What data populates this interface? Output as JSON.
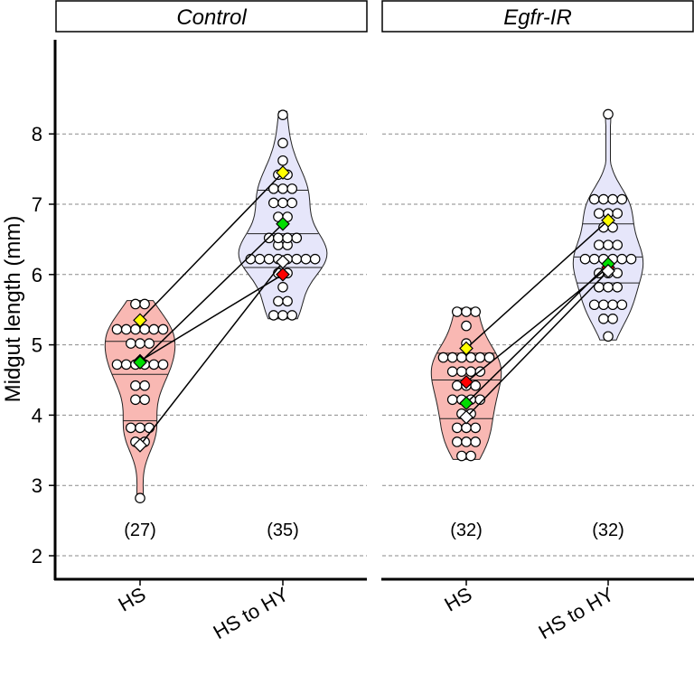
{
  "chart_data": {
    "type": "violin",
    "ylabel": "Midgut length (mm)",
    "ylim": [
      1.7,
      9.3
    ],
    "yticks": [
      2,
      3,
      4,
      5,
      6,
      7,
      8
    ],
    "grid": "horizontal dashed",
    "group_colors": {
      "HS": "#f9b8b3",
      "HS to HY": "#e6e6fa"
    },
    "marker_colors": [
      "#ffff00",
      "#ff0000",
      "#00dd00",
      "#ffffff"
    ],
    "panels": [
      {
        "name": "Control",
        "groups": [
          {
            "label": "HS",
            "count_label": "(27)",
            "quartiles": [
              3.92,
              4.58,
              5.05
            ],
            "points": [
              2.82,
              3.62,
              3.62,
              3.82,
              3.82,
              3.82,
              4.22,
              4.22,
              4.42,
              4.42,
              4.72,
              4.72,
              4.72,
              4.72,
              4.72,
              4.72,
              5.02,
              5.02,
              5.02,
              5.22,
              5.22,
              5.22,
              5.22,
              5.22,
              5.22,
              5.58,
              5.58
            ]
          },
          {
            "label": "HS to HY",
            "count_label": "(35)",
            "quartiles": [
              6.1,
              6.58,
              7.2
            ],
            "points": [
              5.42,
              5.42,
              5.42,
              5.62,
              5.62,
              5.82,
              6.02,
              6.02,
              6.22,
              6.22,
              6.22,
              6.22,
              6.22,
              6.22,
              6.22,
              6.22,
              6.42,
              6.42,
              6.52,
              6.52,
              6.52,
              6.52,
              6.82,
              6.82,
              7.02,
              7.02,
              7.02,
              7.22,
              7.22,
              7.22,
              7.42,
              7.42,
              7.62,
              7.87,
              8.27
            ]
          }
        ],
        "replicate_means": [
          {
            "color": "#ffff00",
            "HS": 5.35,
            "HS to HY": 7.45
          },
          {
            "color": "#ff0000",
            "HS": 4.77,
            "HS to HY": 6.0
          },
          {
            "color": "#00dd00",
            "HS": 4.75,
            "HS to HY": 6.72
          },
          {
            "color": "#ffffff",
            "HS": 3.57,
            "HS to HY": 6.18
          }
        ]
      },
      {
        "name": "Egfr-IR",
        "groups": [
          {
            "label": "HS",
            "count_label": "(32)",
            "quartiles": [
              3.95,
              4.5,
              4.88
            ],
            "points": [
              3.42,
              3.42,
              3.62,
              3.62,
              3.62,
              3.82,
              3.82,
              3.82,
              4.02,
              4.02,
              4.22,
              4.22,
              4.22,
              4.22,
              4.42,
              4.42,
              4.42,
              4.62,
              4.62,
              4.62,
              4.62,
              4.82,
              4.82,
              4.82,
              4.82,
              4.82,
              4.82,
              5.02,
              5.27,
              5.47,
              5.47,
              5.47
            ]
          },
          {
            "label": "HS to HY",
            "count_label": "(32)",
            "quartiles": [
              5.88,
              6.25,
              6.72
            ],
            "points": [
              5.12,
              5.37,
              5.37,
              5.57,
              5.57,
              5.57,
              5.57,
              5.82,
              5.82,
              5.82,
              6.02,
              6.02,
              6.02,
              6.22,
              6.22,
              6.22,
              6.22,
              6.22,
              6.22,
              6.42,
              6.42,
              6.42,
              6.67,
              6.67,
              6.87,
              6.87,
              6.87,
              7.07,
              7.07,
              7.07,
              7.07,
              8.28
            ]
          }
        ],
        "replicate_means": [
          {
            "color": "#ffff00",
            "HS": 4.95,
            "HS to HY": 6.77
          },
          {
            "color": "#ff0000",
            "HS": 4.47,
            "HS to HY": 6.1
          },
          {
            "color": "#00dd00",
            "HS": 4.17,
            "HS to HY": 6.15
          },
          {
            "color": "#ffffff",
            "HS": 3.97,
            "HS to HY": 6.05
          }
        ]
      }
    ]
  }
}
